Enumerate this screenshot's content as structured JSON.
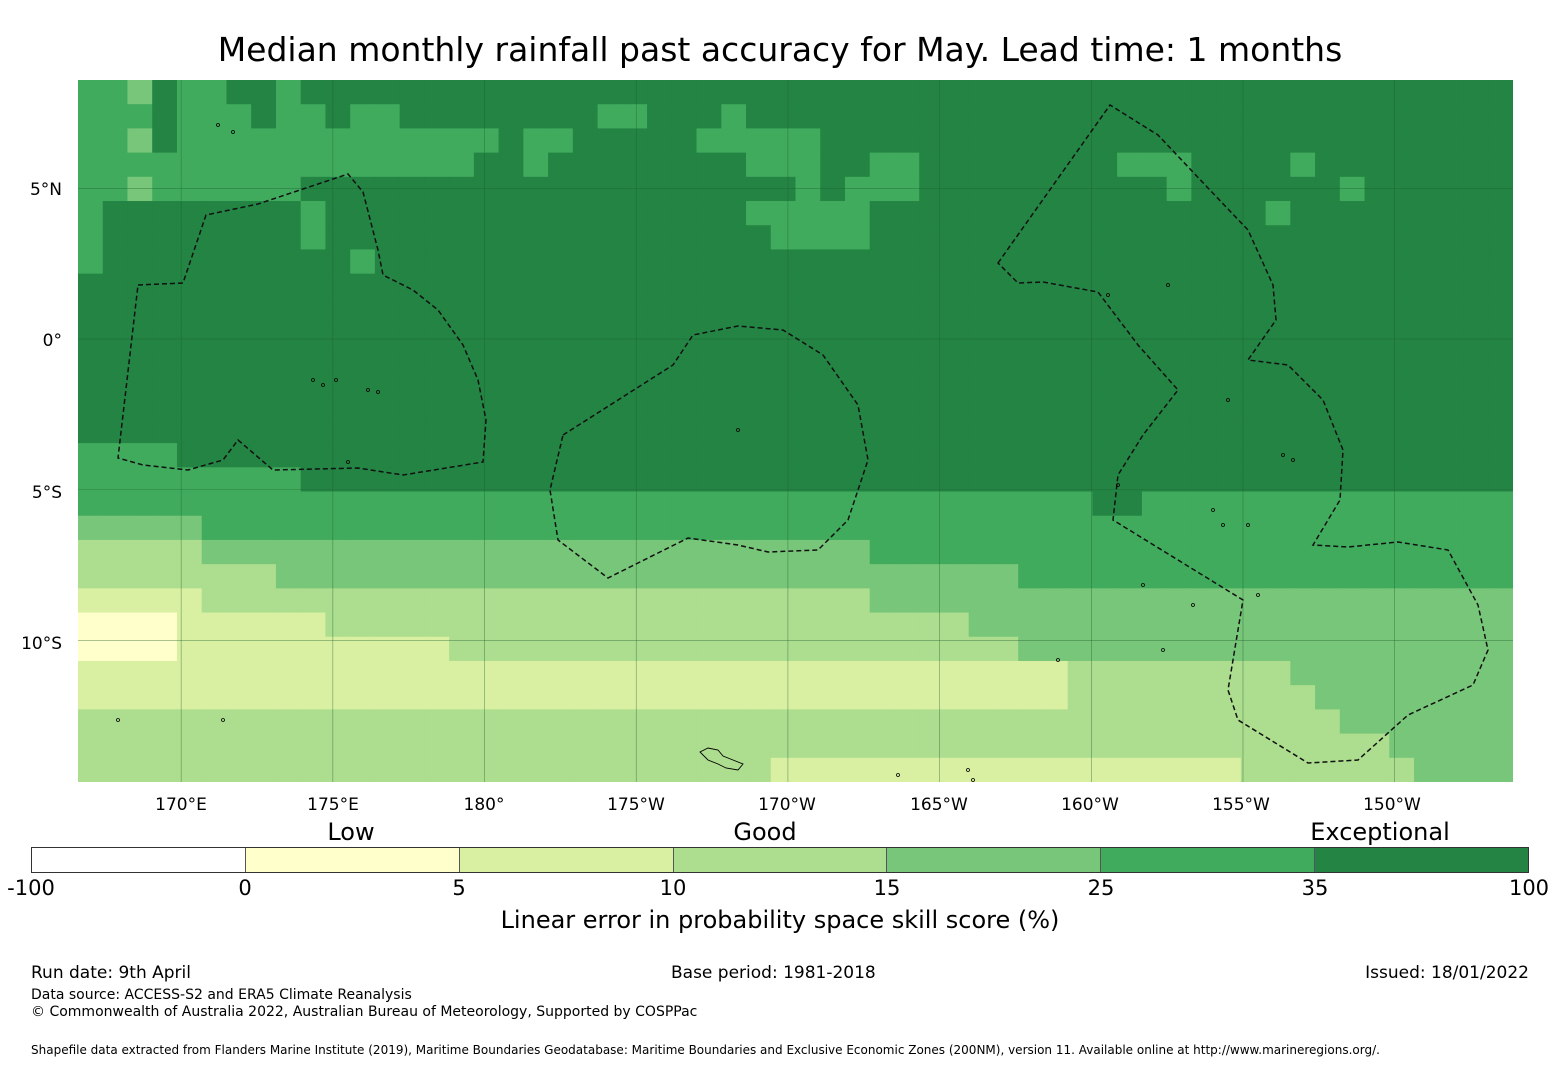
{
  "title": "Median monthly rainfall past accuracy for May. Lead time: 1 months",
  "lat_labels": [
    "5°N",
    "0°",
    "5°S",
    "10°S"
  ],
  "lon_labels": [
    "170°E",
    "175°E",
    "180°",
    "175°W",
    "170°W",
    "165°W",
    "160°W",
    "155°W",
    "150°W"
  ],
  "category_labels": {
    "low": "Low",
    "good": "Good",
    "exceptional": "Exceptional"
  },
  "colorbar": {
    "ticks": [
      "-100",
      "0",
      "5",
      "10",
      "15",
      "25",
      "35",
      "100"
    ],
    "colors": [
      "#ffffff",
      "#ffffcc",
      "#d9f0a3",
      "#addd8e",
      "#78c679",
      "#41ab5d",
      "#238443"
    ],
    "title": "Linear error in probability space skill score (%)"
  },
  "map_extent": {
    "lon_min": 166.6,
    "lon_max": 213.9,
    "lat_min": -14.7,
    "lat_max": 8.6
  },
  "skill_rows": [
    "5546556656666666666666666666666666666666666666666666666666",
    "5556555655655666666665566656666666666666666666666666666666",
    "5546555555555555565566666555556666666666666666666666666666",
    "5555555555555555665666666665556655666666665556666566666666",
    "5545555556666666666666666666656555666666666656666665666666",
    "5666666665666666666666666665555566666666666666665666666666",
    "5666666665666666666666666666555566666666666666666666666666",
    "5666666666656666666666666666666666666666666666666666666666",
    "6666666666666666666666666666666666666666666666666666666666",
    "6666666666666666666666666666666666666666666666666666666666",
    "6666666666666666666666666666666666666666666666666666666666",
    "6666666666666666666666666666666666666666666666666666666666",
    "6666666666666666666666666666666666666666666666666666666666",
    "6666666666666666666666666666666666666666666666666666666666",
    "6666666666666666666666666666666666666666666666666666666666",
    "5555666666666666666666666666666666666666666666666666666666",
    "5555555556666666666666666666666666666666666666666666666666",
    "5555555555555555555555555555555555555555566555555555555555",
    "4444455555555555555555555555555555555555555555555555555555",
    "3333344444444444444444444444444455555555555555555555555555",
    "3333333344444444444444444444444444444455555555555555555555",
    "2222233333333333333333333333333344444444444444444444444444",
    "1111222222333333333333333333333333334444444444444444444444",
    "1111222222222223333333333333333333333344444444444444444444",
    "2222222222222222222222222222222222222222333333333444444444",
    "2222222222222222222222222222222222222222333333333344444444",
    "3333333333333333333333333333333333333333333333333334444444",
    "3333333333333333333333333333333333333333333333333333344444",
    "3333333333333333333333333333222222222222222222233333334444"
  ],
  "map_cols": 58,
  "map_rows": 29
}
